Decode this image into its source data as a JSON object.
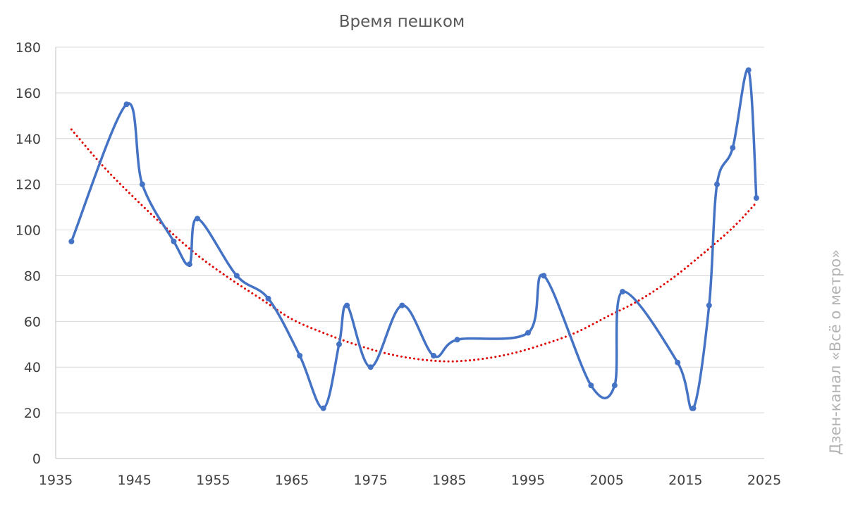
{
  "watermark": "Дзен-канал «Всё о метро»",
  "chart_data": {
    "type": "line",
    "title": "Время пешком",
    "xlabel": "",
    "ylabel": "",
    "xlim": [
      1935,
      2025
    ],
    "ylim": [
      0,
      180
    ],
    "x_ticks": [
      "1935",
      "1945",
      "1955",
      "1965",
      "1975",
      "1985",
      "1995",
      "2005",
      "2015",
      "2025"
    ],
    "y_ticks": [
      "0",
      "20",
      "40",
      "60",
      "80",
      "100",
      "120",
      "140",
      "160",
      "180"
    ],
    "grid": true,
    "legend": "none",
    "series": [
      {
        "color": "#4472C4",
        "smooth": true,
        "x": [
          1937,
          1944,
          1946,
          1950,
          1952,
          1953,
          1958,
          1962,
          1966,
          1969,
          1971,
          1972,
          1975,
          1979,
          1983,
          1986,
          1995,
          1997,
          2003,
          2006,
          2007,
          2014,
          2016,
          2018,
          2019,
          2021,
          2023,
          2024
        ],
        "values": [
          95,
          155,
          120,
          95,
          85,
          105,
          80,
          70,
          45,
          22,
          50,
          67,
          40,
          67,
          45,
          52,
          55,
          80,
          32,
          32,
          73,
          42,
          22,
          67,
          120,
          136,
          170,
          114
        ]
      },
      {
        "type": "trendline",
        "style": "dotted",
        "color": "#E00000",
        "x": [
          1937,
          1941,
          1945,
          1949,
          1953,
          1957,
          1961,
          1965,
          1969,
          1973,
          1977,
          1981,
          1985,
          1989,
          1993,
          1997,
          2001,
          2005,
          2009,
          2013,
          2017,
          2021,
          2024
        ],
        "values": [
          144,
          128,
          114,
          101,
          89,
          79,
          70,
          61,
          55,
          50,
          46,
          43.5,
          42.5,
          43.5,
          46,
          50,
          55,
          62,
          69,
          78,
          89,
          101,
          112
        ]
      }
    ]
  }
}
